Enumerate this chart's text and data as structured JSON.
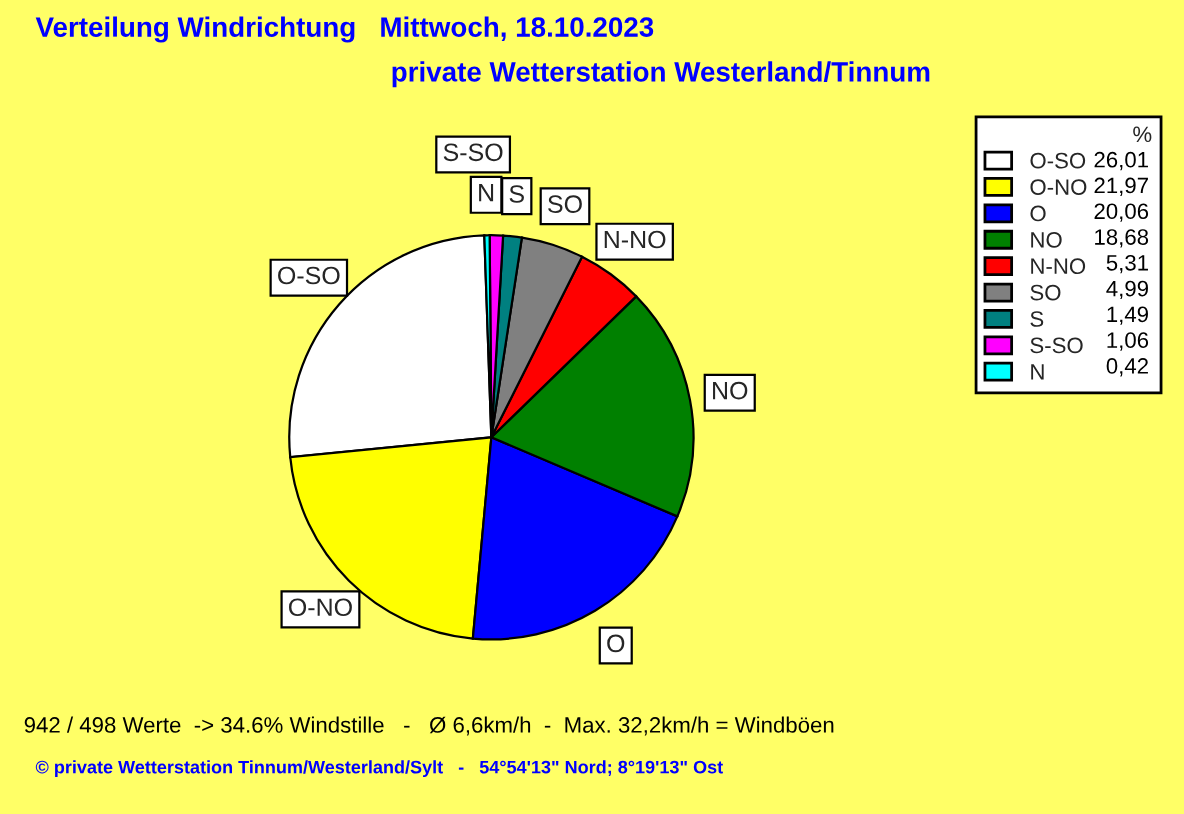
{
  "chart_data": {
    "type": "pie",
    "title": "Verteilung Windrichtung   Mittwoch, 18.10.2023",
    "subtitle": "private Wetterstation Westerland/Tinnum",
    "categories": [
      "O-SO",
      "O-NO",
      "O",
      "NO",
      "N-NO",
      "SO",
      "S",
      "S-SO",
      "N"
    ],
    "values": [
      26.01,
      21.97,
      20.06,
      18.68,
      5.31,
      4.99,
      1.49,
      1.06,
      0.42
    ],
    "value_labels": [
      "26,01",
      "21,97",
      "20,06",
      "18,68",
      "5,31",
      "4,99",
      "1,49",
      "1,06",
      "0,42"
    ],
    "colors": [
      "#ffffff",
      "#ffff00",
      "#0000ff",
      "#008000",
      "#ff0000",
      "#808080",
      "#008080",
      "#ff00ff",
      "#00ffff"
    ],
    "legend_title": "%",
    "legend": "right",
    "annotations": [
      "942 / 498 Werte  -> 34.6% Windstille   -   Ø 6,6km/h  -  Max. 32,2km/h = Windböen",
      "© private Wetterstation Tinnum/Westerland/Sylt   -   54°54'13\" Nord; 8°19'13\" Ost"
    ]
  }
}
